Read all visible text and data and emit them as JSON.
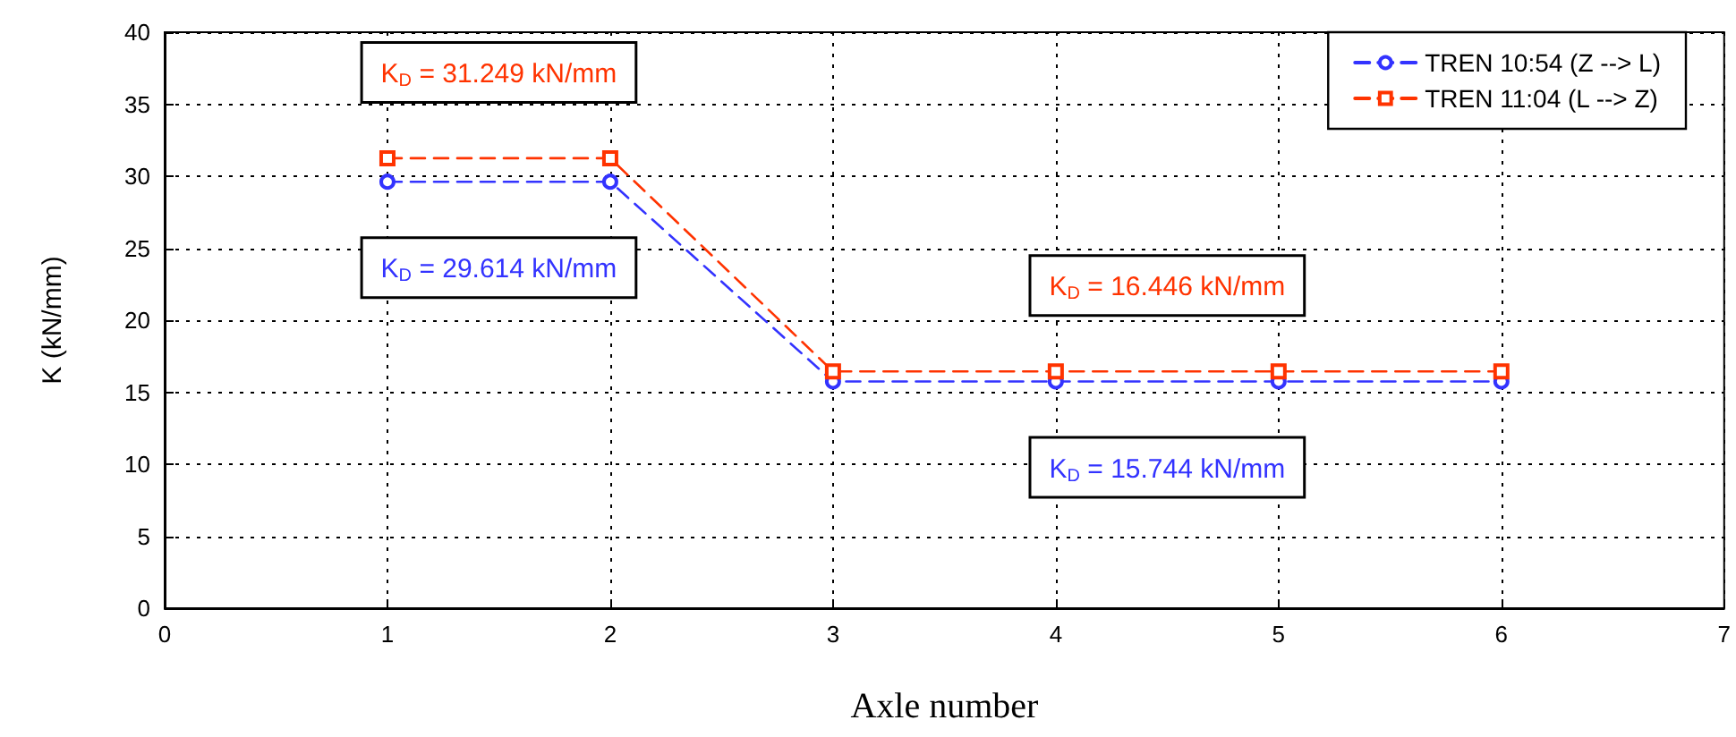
{
  "chart_data": {
    "type": "line",
    "xlabel": "Axle number",
    "ylabel": "K (kN/mm)",
    "xlim": [
      0,
      7
    ],
    "xticks": [
      0,
      1,
      2,
      3,
      4,
      5,
      6,
      7
    ],
    "ylim": [
      0,
      40
    ],
    "yticks": [
      0,
      5,
      10,
      15,
      20,
      25,
      30,
      35,
      40
    ],
    "grid": true,
    "legend": "top right",
    "series": [
      {
        "name": "TREN 10:54 (Z --> L)",
        "color": "#3333ff",
        "x": [
          1,
          2,
          3,
          4,
          5,
          6
        ],
        "values": [
          29.614,
          29.614,
          15.744,
          15.744,
          15.744,
          15.744
        ],
        "marker": "circle",
        "line_style": "dashed"
      },
      {
        "name": "TREN 11:04 (L --> Z)",
        "color": "#ff3300",
        "x": [
          1,
          2,
          3,
          4,
          5,
          6
        ],
        "values": [
          31.249,
          31.249,
          16.446,
          16.446,
          16.446,
          16.446
        ],
        "marker": "square",
        "line_style": "dashed"
      }
    ],
    "annotations": [
      {
        "text": "K$_{D}$ = 31.249 kN/mm",
        "y": 31.249
      },
      {
        "text": "K$_{D}$ = 29.614 kN/mm",
        "y": 29.614
      },
      {
        "text": "K$_{D}$ = 16.446 kN/mm",
        "y": 16.446
      },
      {
        "text": "K$_{D}$ = 15.744 kN/mm",
        "y": 15.744
      }
    ]
  }
}
